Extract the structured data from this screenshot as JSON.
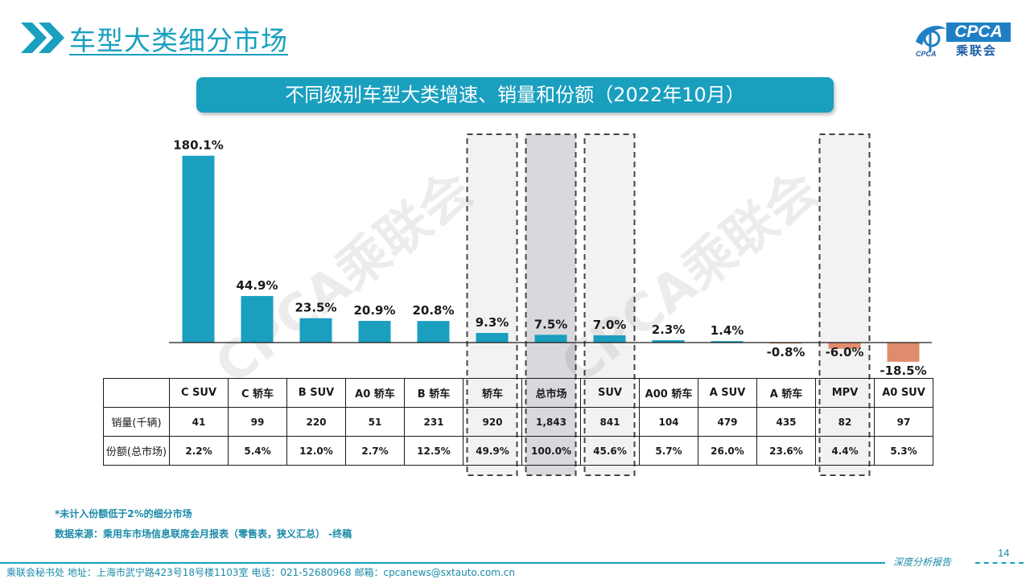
{
  "header": {
    "title": "车型大类细分市场",
    "chevrons_icon": "double-chevron-right-icon",
    "accent_color": "#1aa0bf"
  },
  "logo": {
    "en": "CPCA",
    "cn": "乘联会",
    "sub": "CPCA",
    "icon": "cpca-logo-icon"
  },
  "banner": {
    "title": "不同级别车型大类增速、销量和份额（2022年10月）"
  },
  "chart_data": {
    "type": "bar",
    "categories": [
      "C SUV",
      "C 轿车",
      "B SUV",
      "A0 轿车",
      "B 轿车",
      "轿车",
      "总市场",
      "SUV",
      "A00 轿车",
      "A SUV",
      "A 轿车",
      "MPV",
      "A0 SUV"
    ],
    "values": [
      180.1,
      44.9,
      23.5,
      20.9,
      20.8,
      9.3,
      7.5,
      7.0,
      2.3,
      1.4,
      -0.8,
      -6.0,
      -18.5
    ],
    "value_labels": [
      "180.1%",
      "44.9%",
      "23.5%",
      "20.9%",
      "20.8%",
      "9.3%",
      "7.5%",
      "7.0%",
      "2.3%",
      "1.4%",
      "-0.8%",
      "-6.0%",
      "-18.5%"
    ],
    "highlighted": [
      "轿车",
      "总市场",
      "SUV",
      "MPV"
    ],
    "title": "不同级别车型大类增速、销量和份额（2022年10月）",
    "xlabel": "",
    "ylabel": "",
    "ylim": [
      -20,
      185
    ],
    "grid": false,
    "colors": {
      "positive": "#1a9fbf",
      "negative": "#e08c6c",
      "highlight_box": "#f2f2f2",
      "highlight_box_total": "#d9d9dd",
      "dashed_border": "#444444"
    }
  },
  "table": {
    "rows": [
      {
        "label": "销量(千辆)",
        "values": [
          "41",
          "99",
          "220",
          "51",
          "231",
          "920",
          "1,843",
          "841",
          "104",
          "479",
          "435",
          "82",
          "97"
        ]
      },
      {
        "label": "份额(总市场)",
        "values": [
          "2.2%",
          "5.4%",
          "12.0%",
          "2.7%",
          "12.5%",
          "49.9%",
          "100.0%",
          "45.6%",
          "5.7%",
          "26.0%",
          "23.6%",
          "4.4%",
          "5.3%"
        ]
      }
    ]
  },
  "watermark": {
    "text": "CPCA乘联会"
  },
  "notes": {
    "note1": "*未计入份额低于2%的细分市场",
    "source": "数据来源：乘用车市场信息联席会月报表（零售表，狭义汇总） -终稿"
  },
  "footer": {
    "page_number": "14",
    "tag": "深度分析报告",
    "contact": "乘联会秘书处   地址：上海市武宁路423号18号楼1103室  电话：021-52680968   邮箱：cpcanews@sxtauto.com.cn"
  }
}
